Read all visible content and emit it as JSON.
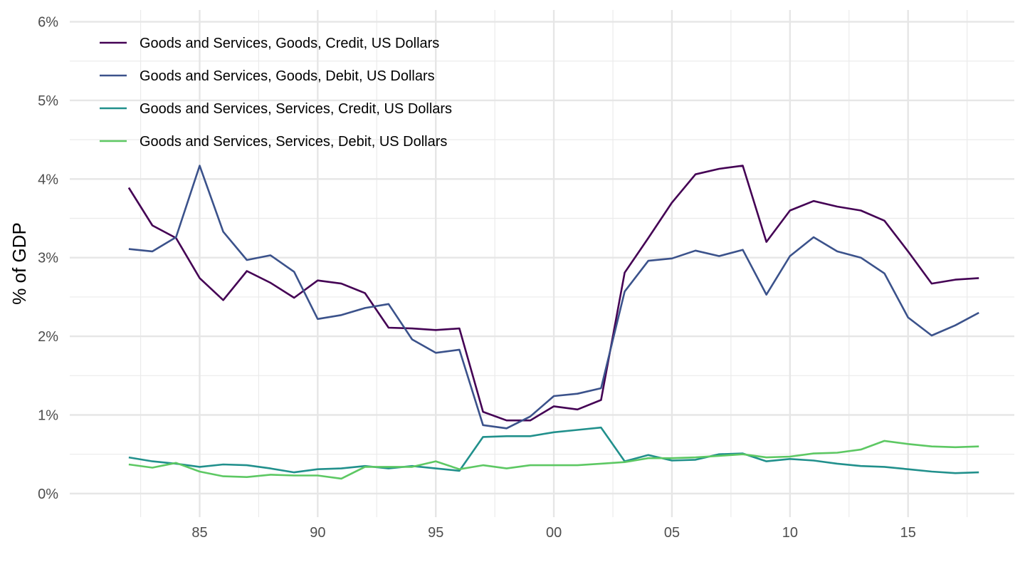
{
  "chart_data": {
    "type": "line",
    "title": "",
    "xlabel": "",
    "ylabel": "% of GDP",
    "x": [
      1982,
      1983,
      1984,
      1985,
      1986,
      1987,
      1988,
      1989,
      1990,
      1991,
      1992,
      1993,
      1994,
      1995,
      1996,
      1997,
      1998,
      1999,
      2000,
      2001,
      2002,
      2003,
      2004,
      2005,
      2006,
      2007,
      2008,
      2009,
      2010,
      2011,
      2012,
      2013,
      2014,
      2015,
      2016,
      2017,
      2018
    ],
    "xlim": [
      1979.5,
      2019.5
    ],
    "ylim": [
      -0.3,
      6.15
    ],
    "x_ticks": [
      {
        "value": 1985,
        "label": "85"
      },
      {
        "value": 1990,
        "label": "90"
      },
      {
        "value": 1995,
        "label": "95"
      },
      {
        "value": 2000,
        "label": "00"
      },
      {
        "value": 2005,
        "label": "05"
      },
      {
        "value": 2010,
        "label": "10"
      },
      {
        "value": 2015,
        "label": "15"
      }
    ],
    "y_ticks": [
      {
        "value": 0,
        "label": "0%"
      },
      {
        "value": 1,
        "label": "1%"
      },
      {
        "value": 2,
        "label": "2%"
      },
      {
        "value": 3,
        "label": "3%"
      },
      {
        "value": 4,
        "label": "4%"
      },
      {
        "value": 5,
        "label": "5%"
      },
      {
        "value": 6,
        "label": "6%"
      }
    ],
    "grid": true,
    "legend_position": "top-left",
    "series": [
      {
        "name": "Goods and Services, Goods, Credit, US Dollars",
        "color": "#440154",
        "values": [
          3.89,
          3.41,
          3.25,
          2.74,
          2.46,
          2.83,
          2.68,
          2.49,
          2.71,
          2.67,
          2.55,
          2.11,
          2.1,
          2.08,
          2.1,
          1.04,
          0.93,
          0.93,
          1.11,
          1.07,
          1.19,
          2.81,
          3.25,
          3.7,
          4.06,
          4.13,
          4.17,
          3.2,
          3.6,
          3.72,
          3.65,
          3.6,
          3.47,
          3.08,
          2.67,
          2.72,
          2.74
        ]
      },
      {
        "name": "Goods and Services, Goods, Debit, US Dollars",
        "color": "#3b528b",
        "values": [
          3.11,
          3.08,
          3.26,
          4.17,
          3.33,
          2.97,
          3.03,
          2.82,
          2.22,
          2.27,
          2.36,
          2.41,
          1.96,
          1.79,
          1.83,
          0.87,
          0.83,
          0.98,
          1.24,
          1.27,
          1.34,
          2.57,
          2.96,
          2.99,
          3.09,
          3.02,
          3.1,
          2.53,
          3.02,
          3.26,
          3.08,
          3.0,
          2.8,
          2.24,
          2.01,
          2.14,
          2.3
        ]
      },
      {
        "name": "Goods and Services, Services, Credit, US Dollars",
        "color": "#21908c",
        "values": [
          0.46,
          0.41,
          0.38,
          0.34,
          0.37,
          0.36,
          0.32,
          0.27,
          0.31,
          0.32,
          0.35,
          0.32,
          0.35,
          0.32,
          0.29,
          0.72,
          0.73,
          0.73,
          0.78,
          0.81,
          0.84,
          0.41,
          0.49,
          0.42,
          0.43,
          0.5,
          0.51,
          0.41,
          0.44,
          0.42,
          0.38,
          0.35,
          0.34,
          0.31,
          0.28,
          0.26,
          0.27
        ]
      },
      {
        "name": "Goods and Services, Services, Debit, US Dollars",
        "color": "#5dc863",
        "values": [
          0.37,
          0.33,
          0.39,
          0.28,
          0.22,
          0.21,
          0.24,
          0.23,
          0.23,
          0.19,
          0.34,
          0.34,
          0.34,
          0.41,
          0.31,
          0.36,
          0.32,
          0.36,
          0.36,
          0.36,
          0.38,
          0.4,
          0.45,
          0.45,
          0.46,
          0.48,
          0.5,
          0.46,
          0.47,
          0.51,
          0.52,
          0.56,
          0.67,
          0.63,
          0.6,
          0.59,
          0.6
        ]
      }
    ]
  }
}
